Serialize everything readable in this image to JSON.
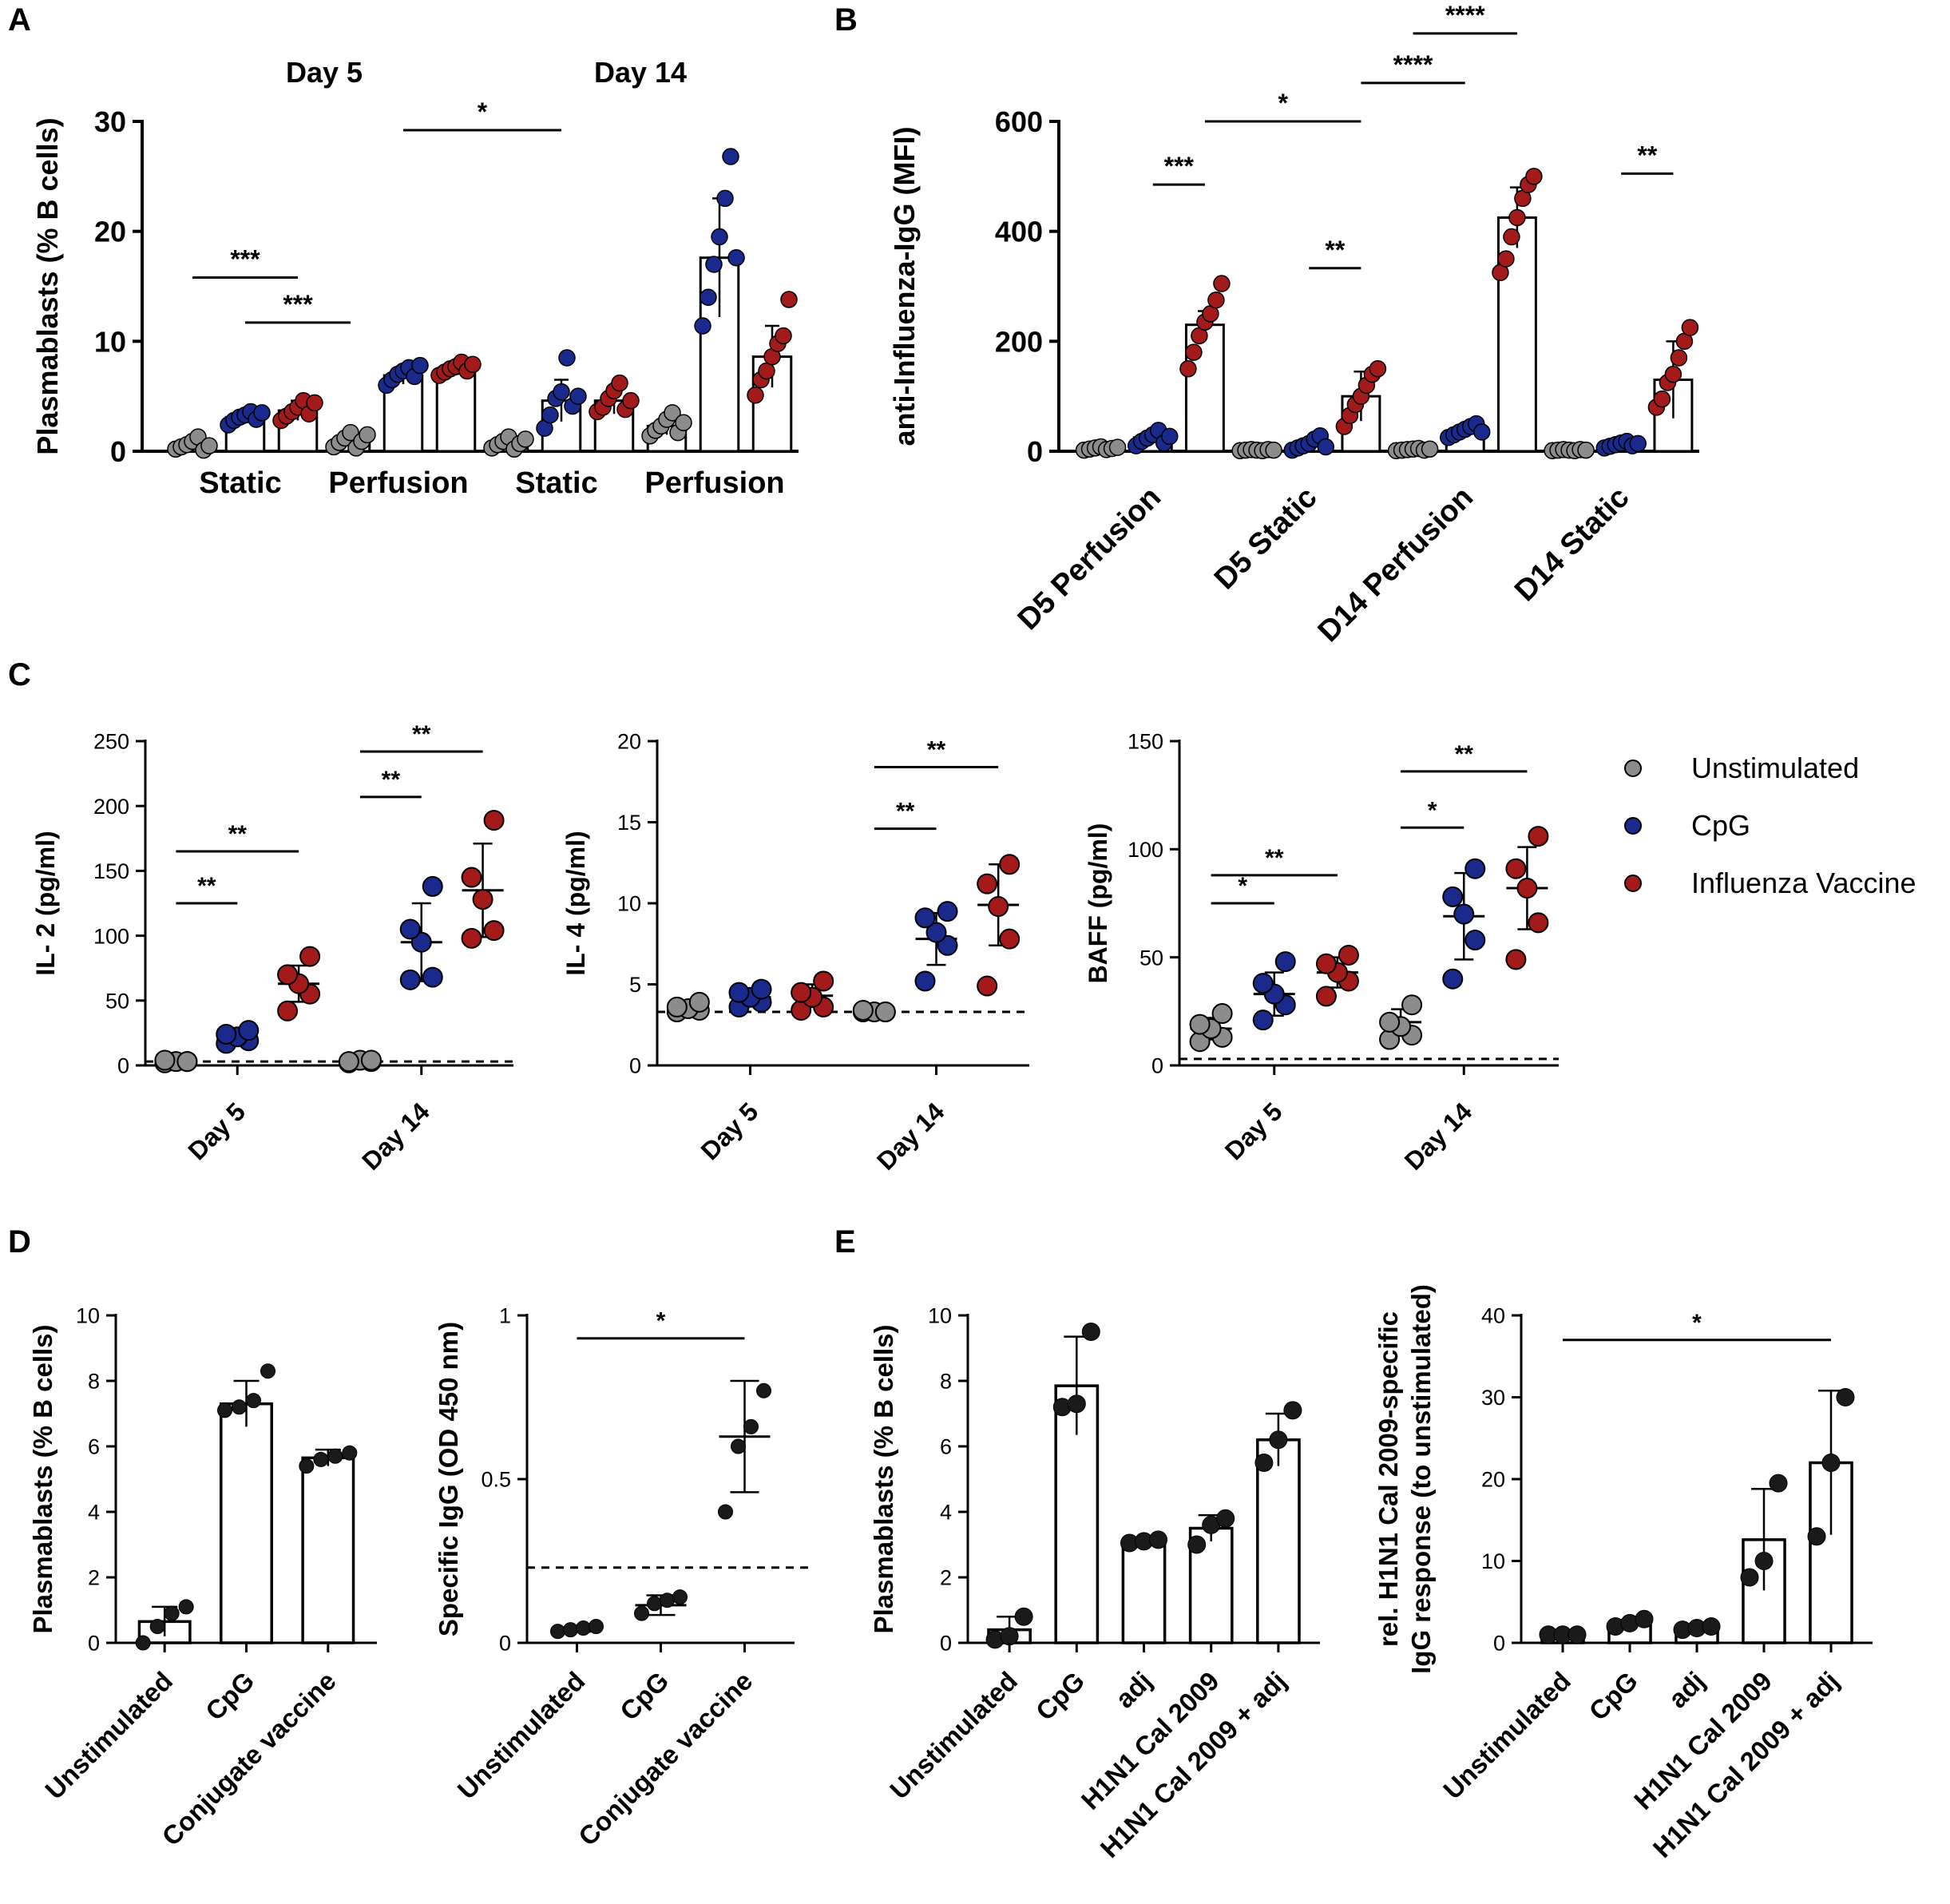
{
  "figure": {
    "panel_labels": [
      "A",
      "B",
      "C",
      "D",
      "E"
    ],
    "legend": {
      "items": [
        {
          "label": "Unstimulated",
          "color": "#8c8c8c"
        },
        {
          "label": "CpG",
          "color": "#1a2a8c"
        },
        {
          "label": "Influenza Vaccine",
          "color": "#a31a1a"
        }
      ]
    },
    "colors": {
      "grey": "#8c8c8c",
      "blue": "#1a2a8c",
      "red": "#a31a1a",
      "black": "#1a1a1a"
    }
  },
  "chart_data": [
    {
      "id": "A",
      "type": "bar",
      "ylabel": "Plasmablasts (% B cells)",
      "ylim": [
        0,
        30
      ],
      "yticks": [
        0,
        10,
        20,
        30
      ],
      "group_headers": [
        "Day 5",
        "Day 14"
      ],
      "categories": [
        "Static",
        "Perfusion",
        "Static",
        "Perfusion"
      ],
      "series_names": [
        "Unstimulated",
        "CpG",
        "Influenza Vaccine"
      ],
      "values": [
        [
          0.6,
          3.1,
          3.7
        ],
        [
          1.0,
          6.9,
          7.5
        ],
        [
          0.8,
          4.6,
          4.6
        ],
        [
          2.3,
          17.6,
          8.6
        ]
      ],
      "sd": [
        [
          0.4,
          0.6,
          0.9
        ],
        [
          0.5,
          0.8,
          0.6
        ],
        [
          0.4,
          1.9,
          1.2
        ],
        [
          0.8,
          5.4,
          2.8
        ]
      ],
      "points": [
        [
          [
            0.2,
            0.4,
            0.6,
            0.9,
            1.3,
            0.1,
            0.5
          ],
          [
            2.4,
            2.8,
            3.1,
            3.3,
            3.6,
            2.9,
            3.5
          ],
          [
            2.8,
            3.2,
            3.6,
            4.0,
            4.6,
            3.4,
            4.4
          ]
        ],
        [
          [
            0.4,
            0.8,
            1.2,
            1.7,
            0.3,
            0.9,
            1.5
          ],
          [
            6.0,
            6.5,
            7.0,
            7.3,
            7.6,
            6.8,
            7.8
          ],
          [
            6.9,
            7.2,
            7.5,
            7.7,
            8.1,
            7.3,
            7.9
          ]
        ],
        [
          [
            0.3,
            0.6,
            0.9,
            1.3,
            0.2,
            0.7,
            1.1
          ],
          [
            2.1,
            3.3,
            4.8,
            5.4,
            8.5,
            4.1,
            5.0
          ],
          [
            3.6,
            4.0,
            4.8,
            5.5,
            6.2,
            3.8,
            4.6
          ]
        ],
        [
          [
            1.4,
            1.9,
            2.3,
            2.9,
            3.5,
            1.7,
            2.6
          ],
          [
            11.4,
            14.0,
            17.0,
            19.5,
            23.0,
            26.8,
            17.6
          ],
          [
            5.1,
            6.5,
            7.3,
            8.6,
            9.8,
            10.5,
            13.8
          ]
        ]
      ],
      "sig": [
        {
          "label": "***",
          "from": [
            0,
            0
          ],
          "to": [
            0,
            2
          ],
          "y": 15.8
        },
        {
          "label": "***",
          "from": [
            0,
            1
          ],
          "to": [
            1,
            0
          ],
          "y": 11.7
        },
        {
          "label": "*",
          "from": [
            1,
            1
          ],
          "to": [
            2,
            1
          ],
          "y": 29.2
        }
      ]
    },
    {
      "id": "B",
      "type": "bar",
      "ylabel": "anti-Influenza-IgG (MFI)",
      "ylim": [
        0,
        600
      ],
      "yticks": [
        0,
        200,
        400,
        600
      ],
      "categories": [
        "D5 Perfusion",
        "D5 Static",
        "D14 Perfusion",
        "D14 Static"
      ],
      "series_names": [
        "Unstimulated",
        "CpG",
        "Influenza Vaccine"
      ],
      "values": [
        [
          5,
          25,
          230
        ],
        [
          2,
          12,
          100
        ],
        [
          3,
          35,
          425
        ],
        [
          2,
          12,
          130
        ]
      ],
      "sd": [
        [
          3,
          10,
          25
        ],
        [
          1,
          8,
          45
        ],
        [
          2,
          10,
          55
        ],
        [
          1,
          5,
          70
        ]
      ],
      "points": [
        [
          [
            2,
            4,
            6,
            8,
            3,
            5,
            7
          ],
          [
            10,
            18,
            24,
            30,
            38,
            15,
            27
          ],
          [
            150,
            180,
            210,
            235,
            250,
            275,
            305
          ]
        ],
        [
          [
            1,
            2,
            3,
            2,
            1,
            3,
            2
          ],
          [
            2,
            6,
            10,
            14,
            22,
            28,
            8
          ],
          [
            45,
            65,
            85,
            100,
            120,
            140,
            150
          ]
        ],
        [
          [
            1,
            2,
            3,
            4,
            5,
            2,
            4
          ],
          [
            25,
            30,
            35,
            40,
            45,
            50,
            35
          ],
          [
            325,
            350,
            390,
            425,
            460,
            485,
            500
          ]
        ],
        [
          [
            1,
            2,
            3,
            2,
            1,
            3,
            2
          ],
          [
            6,
            9,
            12,
            15,
            18,
            10,
            14
          ],
          [
            80,
            95,
            125,
            140,
            170,
            200,
            225
          ]
        ]
      ],
      "sig": [
        {
          "label": "***",
          "from": [
            0,
            1
          ],
          "to": [
            0,
            2
          ],
          "y": 485
        },
        {
          "label": "*",
          "from": [
            0,
            2
          ],
          "to": [
            1,
            2
          ],
          "y": 600
        },
        {
          "label": "**",
          "from": [
            1,
            1
          ],
          "to": [
            1,
            2
          ],
          "y": 333
        },
        {
          "label": "****",
          "from": [
            1,
            2
          ],
          "to": [
            2,
            1
          ],
          "y": 670
        },
        {
          "label": "****",
          "from": [
            2,
            0
          ],
          "to": [
            2,
            2
          ],
          "y": 760
        },
        {
          "label": "**",
          "from": [
            3,
            1
          ],
          "to": [
            3,
            2
          ],
          "y": 505
        }
      ]
    },
    {
      "id": "C1",
      "type": "scatter",
      "ylabel": "IL- 2 (pg/ml)",
      "ylim": [
        0,
        250
      ],
      "yticks": [
        0,
        50,
        100,
        150,
        200,
        250
      ],
      "categories": [
        "Day 5",
        "Day 14"
      ],
      "series_names": [
        "Unstimulated",
        "CpG",
        "Influenza Vaccine"
      ],
      "dashed_line": 3,
      "points": [
        [
          [
            2,
            3,
            3,
            4,
            3
          ],
          [
            17,
            19,
            22,
            24,
            27
          ],
          [
            42,
            55,
            63,
            70,
            84
          ]
        ],
        [
          [
            2,
            3,
            4,
            3,
            4
          ],
          [
            66,
            68,
            95,
            105,
            138
          ],
          [
            98,
            104,
            128,
            145,
            189
          ]
        ]
      ],
      "mean": [
        [
          3,
          22,
          63
        ],
        [
          3,
          95,
          135
        ]
      ],
      "sd": [
        [
          1,
          4,
          14
        ],
        [
          1,
          30,
          36
        ]
      ],
      "sig": [
        {
          "label": "**",
          "from": [
            0,
            0
          ],
          "to": [
            0,
            1
          ],
          "y": 125
        },
        {
          "label": "**",
          "from": [
            0,
            0
          ],
          "to": [
            0,
            2
          ],
          "y": 165
        },
        {
          "label": "**",
          "from": [
            1,
            0
          ],
          "to": [
            1,
            1
          ],
          "y": 207
        },
        {
          "label": "**",
          "from": [
            1,
            0
          ],
          "to": [
            1,
            2
          ],
          "y": 242
        }
      ]
    },
    {
      "id": "C2",
      "type": "scatter",
      "ylabel": "IL- 4 (pg/ml)",
      "ylim": [
        0,
        20
      ],
      "yticks": [
        0,
        5,
        10,
        15,
        20
      ],
      "categories": [
        "Day 5",
        "Day 14"
      ],
      "series_names": [
        "Unstimulated",
        "CpG",
        "Influenza Vaccine"
      ],
      "dashed_line": 3.3,
      "points": [
        [
          [
            3.3,
            3.4,
            3.5,
            3.6,
            3.9
          ],
          [
            3.6,
            3.9,
            4.2,
            4.5,
            4.7
          ],
          [
            3.4,
            3.6,
            4.2,
            4.5,
            5.2
          ]
        ],
        [
          [
            3.3,
            3.3,
            3.3,
            3.4,
            3.3
          ],
          [
            5.2,
            7.4,
            8.2,
            9.1,
            9.5
          ],
          [
            4.9,
            7.8,
            9.8,
            11.2,
            12.4
          ]
        ]
      ],
      "mean": [
        [
          3.5,
          4.2,
          4.3
        ],
        [
          3.3,
          7.8,
          9.9
        ]
      ],
      "sd": [
        [
          0.2,
          0.5,
          0.7
        ],
        [
          0.0,
          1.6,
          2.5
        ]
      ],
      "sig": [
        {
          "label": "**",
          "from": [
            1,
            0
          ],
          "to": [
            1,
            1
          ],
          "y": 14.6
        },
        {
          "label": "**",
          "from": [
            1,
            0
          ],
          "to": [
            1,
            2
          ],
          "y": 18.4
        }
      ]
    },
    {
      "id": "C3",
      "type": "scatter",
      "ylabel": "BAFF (pg/ml)",
      "ylim": [
        0,
        150
      ],
      "yticks": [
        0,
        50,
        100,
        150
      ],
      "categories": [
        "Day 5",
        "Day 14"
      ],
      "series_names": [
        "Unstimulated",
        "CpG",
        "Influenza Vaccine"
      ],
      "dashed_line": 3,
      "points": [
        [
          [
            11,
            13,
            17,
            19,
            24
          ],
          [
            21,
            28,
            33,
            38,
            48
          ],
          [
            32,
            39,
            43,
            47,
            51
          ]
        ],
        [
          [
            12,
            14,
            18,
            20,
            28
          ],
          [
            40,
            58,
            70,
            78,
            91
          ],
          [
            49,
            66,
            82,
            91,
            106
          ]
        ]
      ],
      "mean": [
        [
          17,
          33,
          43
        ],
        [
          20,
          69,
          82
        ]
      ],
      "sd": [
        [
          5,
          10,
          7
        ],
        [
          6,
          20,
          19
        ]
      ],
      "sig": [
        {
          "label": "*",
          "from": [
            0,
            0
          ],
          "to": [
            0,
            1
          ],
          "y": 75
        },
        {
          "label": "**",
          "from": [
            0,
            0
          ],
          "to": [
            0,
            2
          ],
          "y": 88
        },
        {
          "label": "*",
          "from": [
            1,
            0
          ],
          "to": [
            1,
            1
          ],
          "y": 110
        },
        {
          "label": "**",
          "from": [
            1,
            0
          ],
          "to": [
            1,
            2
          ],
          "y": 136
        }
      ]
    },
    {
      "id": "D1",
      "type": "bar",
      "ylabel": "Plasmablasts (% B cells)",
      "ylim": [
        0,
        10
      ],
      "yticks": [
        0,
        2,
        4,
        6,
        8,
        10
      ],
      "categories": [
        "Unstimulated",
        "CpG",
        "Conjugate vaccine"
      ],
      "values": [
        0.65,
        7.3,
        5.65
      ],
      "sd": [
        0.45,
        0.7,
        0.25
      ],
      "points": [
        [
          0.0,
          0.5,
          0.9,
          1.1
        ],
        [
          7.1,
          7.2,
          7.4,
          8.3
        ],
        [
          5.4,
          5.6,
          5.7,
          5.8
        ]
      ]
    },
    {
      "id": "D2",
      "type": "scatter",
      "ylabel": "Specific IgG (OD 450 nm)",
      "ylim": [
        0,
        1.0
      ],
      "yticks": [
        0.0,
        0.5,
        1.0
      ],
      "categories": [
        "Unstimulated",
        "CpG",
        "Conjugate vaccine"
      ],
      "dashed_line": 0.23,
      "points": [
        [
          0.035,
          0.04,
          0.045,
          0.05
        ],
        [
          0.09,
          0.12,
          0.13,
          0.14
        ],
        [
          0.4,
          0.6,
          0.66,
          0.77
        ]
      ],
      "mean": [
        0.04,
        0.115,
        0.63
      ],
      "sd": [
        0.006,
        0.03,
        0.17
      ],
      "sig": [
        {
          "label": "*",
          "from": 0,
          "to": 2,
          "y": 0.93
        }
      ]
    },
    {
      "id": "E1",
      "type": "bar",
      "ylabel": "Plasmablasts (% B cells)",
      "ylim": [
        0,
        10
      ],
      "yticks": [
        0,
        2,
        4,
        6,
        8,
        10
      ],
      "categories": [
        "Unstimulated",
        "CpG",
        "adj",
        "H1N1 Cal 2009",
        "H1N1 Cal 2009 + adj"
      ],
      "values": [
        0.4,
        7.85,
        3.1,
        3.5,
        6.2
      ],
      "sd": [
        0.4,
        1.5,
        0.1,
        0.4,
        0.8
      ],
      "points": [
        [
          0.1,
          0.2,
          0.8
        ],
        [
          7.2,
          7.3,
          9.5
        ],
        [
          3.05,
          3.1,
          3.15
        ],
        [
          3.0,
          3.6,
          3.8
        ],
        [
          5.5,
          6.2,
          7.1
        ]
      ]
    },
    {
      "id": "E2",
      "type": "bar",
      "ylabel": "rel. H1N1 Cal 2009-specific IgG response (to unstimulated)",
      "ylabel_lines": [
        "rel. H1N1 Cal 2009-specific",
        "IgG response (to unstimulated)"
      ],
      "ylim": [
        0,
        40
      ],
      "yticks": [
        0,
        10,
        20,
        30,
        40
      ],
      "categories": [
        "Unstimulated",
        "CpG",
        "adj",
        "H1N1 Cal 2009",
        "H1N1 Cal 2009 + adj"
      ],
      "values": [
        1.0,
        2.4,
        1.8,
        12.6,
        22.0
      ],
      "sd": [
        0.0,
        0.4,
        0.3,
        6.2,
        8.8
      ],
      "points": [
        [
          1.0,
          1.0,
          1.0
        ],
        [
          2.0,
          2.4,
          2.9
        ],
        [
          1.6,
          1.8,
          2.0
        ],
        [
          8.0,
          10.0,
          19.5
        ],
        [
          13.0,
          22.0,
          30.0
        ]
      ],
      "sig": [
        {
          "label": "*",
          "from": 0,
          "to": 4,
          "y": 37
        }
      ]
    }
  ]
}
